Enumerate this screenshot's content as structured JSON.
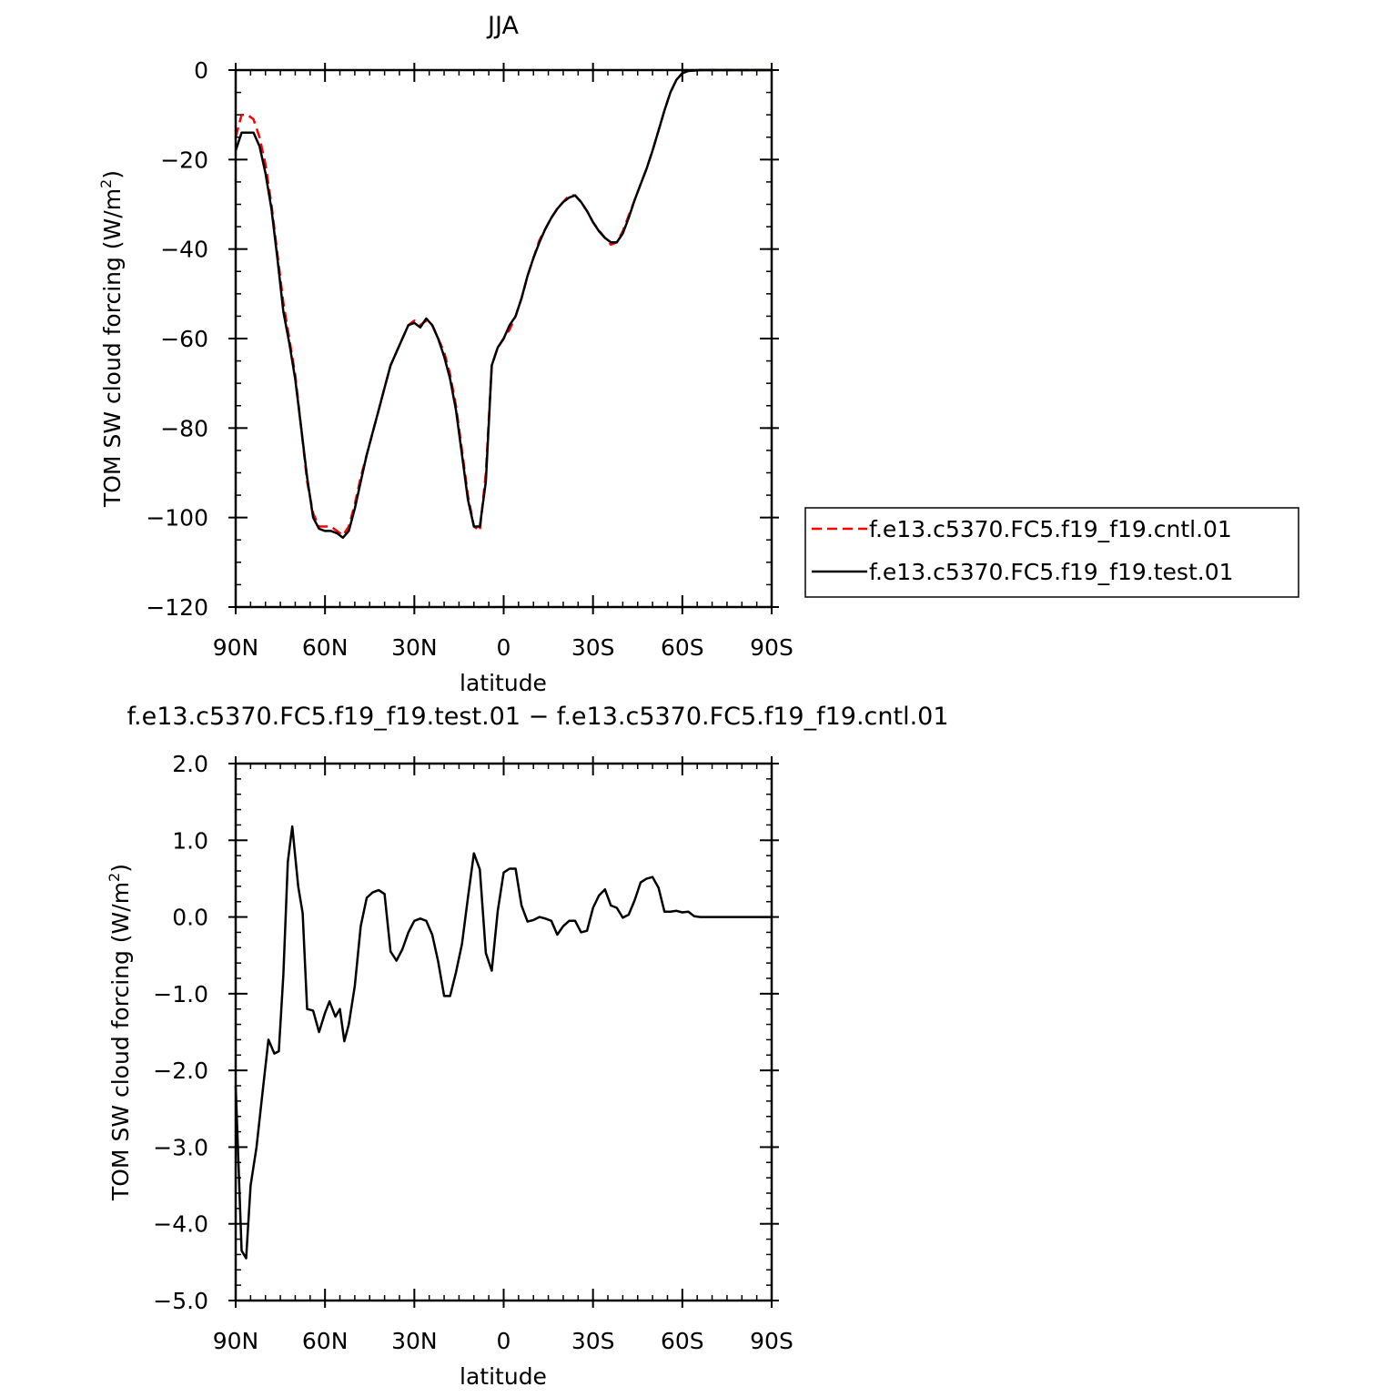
{
  "chart_data": [
    {
      "type": "line",
      "title": "JJA",
      "xlabel": "latitude",
      "ylabel_main": "TOM SW cloud forcing (W/m",
      "ylabel_sup": "2",
      "ylabel_tail": ")",
      "xlim": [
        90,
        -90
      ],
      "ylim": [
        -120,
        0
      ],
      "xticks": [
        90,
        60,
        30,
        0,
        -30,
        -60,
        -90
      ],
      "xtick_labels": [
        "90N",
        "60N",
        "30N",
        "0",
        "30S",
        "60S",
        "90S"
      ],
      "yticks": [
        0,
        -20,
        -40,
        -60,
        -80,
        -100,
        -120
      ],
      "ytick_labels": [
        "0",
        "−20",
        "−40",
        "−60",
        "−80",
        "−100",
        "−120"
      ],
      "legend_position": "right",
      "series": [
        {
          "name": "f.e13.c5370.FC5.f19_f19.cntl.01",
          "color": "#ff0000",
          "dash": "dashed",
          "x": [
            90,
            88,
            86,
            84,
            82,
            80,
            78,
            76,
            74,
            72,
            70,
            68,
            66,
            64,
            62,
            60,
            58,
            56,
            54,
            52,
            50,
            48,
            46,
            44,
            42,
            40,
            38,
            36,
            34,
            32,
            30,
            28,
            26,
            24,
            22,
            20,
            18,
            16,
            14,
            12,
            10,
            8,
            6,
            4,
            2,
            0,
            -2,
            -4,
            -6,
            -8,
            -10,
            -12,
            -14,
            -16,
            -18,
            -20,
            -22,
            -24,
            -26,
            -28,
            -30,
            -32,
            -34,
            -36,
            -38,
            -40,
            -42,
            -44,
            -46,
            -48,
            -50,
            -52,
            -54,
            -56,
            -58,
            -60,
            -62,
            -64,
            -66,
            -68,
            -70,
            -75,
            -80,
            -85,
            -90
          ],
          "y": [
            -15,
            -10,
            -10,
            -11,
            -15,
            -21,
            -30,
            -41,
            -52,
            -60,
            -68,
            -80,
            -92,
            -99,
            -102,
            -102,
            -102,
            -103,
            -104,
            -102,
            -97,
            -91,
            -86,
            -81,
            -76,
            -71,
            -66,
            -63,
            -60,
            -57,
            -56,
            -57,
            -56,
            -57,
            -60,
            -63,
            -68,
            -75,
            -85,
            -95,
            -102,
            -103,
            -90,
            -66,
            -62,
            -60,
            -58,
            -55,
            -51,
            -46,
            -42,
            -38,
            -35.5,
            -33,
            -31,
            -29.5,
            -28,
            -28,
            -29.5,
            -31.5,
            -34,
            -35.8,
            -37.5,
            -39,
            -38.5,
            -36,
            -32.5,
            -29,
            -25.5,
            -22,
            -18,
            -13.5,
            -9,
            -5,
            -2.2,
            -0.7,
            -0.2,
            -0.1,
            0,
            0,
            0,
            0,
            0,
            0,
            0
          ]
        },
        {
          "name": "f.e13.c5370.FC5.f19_f19.test.01",
          "color": "#000000",
          "dash": "solid",
          "x": [
            90,
            88,
            86,
            84,
            82,
            80,
            78,
            76,
            74,
            72,
            70,
            68,
            66,
            64,
            62,
            60,
            58,
            56,
            54,
            52,
            50,
            48,
            46,
            44,
            42,
            40,
            38,
            36,
            34,
            32,
            30,
            28,
            26,
            24,
            22,
            20,
            18,
            16,
            14,
            12,
            10,
            8,
            6,
            4,
            2,
            0,
            -2,
            -4,
            -6,
            -8,
            -10,
            -12,
            -14,
            -16,
            -18,
            -20,
            -22,
            -24,
            -26,
            -28,
            -30,
            -32,
            -34,
            -36,
            -38,
            -40,
            -42,
            -44,
            -46,
            -48,
            -50,
            -52,
            -54,
            -56,
            -58,
            -60,
            -62,
            -64,
            -66,
            -68,
            -70,
            -75,
            -80,
            -85,
            -90
          ],
          "y": [
            -18,
            -14,
            -14,
            -14,
            -17,
            -23,
            -31,
            -42,
            -54,
            -61,
            -69,
            -80,
            -91,
            -100,
            -102.5,
            -103,
            -103,
            -103.5,
            -104.5,
            -103,
            -98,
            -92,
            -86,
            -81,
            -76,
            -71,
            -66,
            -63,
            -60,
            -57,
            -56.5,
            -57.5,
            -55.5,
            -57,
            -60,
            -64,
            -69,
            -76,
            -86,
            -96,
            -102,
            -102,
            -92,
            -66,
            -62,
            -60,
            -57,
            -55,
            -51,
            -46,
            -42,
            -38.5,
            -35.5,
            -33,
            -31,
            -29.5,
            -28.5,
            -28,
            -29.5,
            -31.5,
            -34,
            -36,
            -37.5,
            -38.5,
            -38.5,
            -36.5,
            -33,
            -29,
            -25.5,
            -22,
            -18,
            -13.5,
            -9,
            -5,
            -2.2,
            -0.7,
            -0.2,
            -0.1,
            0,
            0,
            0,
            0,
            0,
            0,
            0
          ]
        }
      ]
    },
    {
      "type": "line",
      "title": "f.e13.c5370.FC5.f19_f19.test.01 − f.e13.c5370.FC5.f19_f19.cntl.01",
      "xlabel": "latitude",
      "ylabel_main": "TOM SW cloud forcing (W/m",
      "ylabel_sup": "2",
      "ylabel_tail": ")",
      "xlim": [
        90,
        -90
      ],
      "ylim": [
        -5,
        2
      ],
      "xticks": [
        90,
        60,
        30,
        0,
        -30,
        -60,
        -90
      ],
      "xtick_labels": [
        "90N",
        "60N",
        "30N",
        "0",
        "30S",
        "60S",
        "90S"
      ],
      "yticks": [
        2,
        1,
        0,
        -1,
        -2,
        -3,
        -4,
        -5
      ],
      "ytick_labels": [
        "2.0",
        "1.0",
        "0.0",
        "−1.0",
        "−2.0",
        "−3.0",
        "−4.0",
        "−5.0"
      ],
      "series": [
        {
          "color": "#000000",
          "dash": "solid",
          "x": [
            90,
            88,
            86.5,
            85,
            83,
            81,
            79,
            77,
            75.5,
            74,
            72.5,
            71,
            69,
            67.5,
            66,
            64,
            62,
            60,
            58.5,
            56.5,
            55,
            53.5,
            52,
            50,
            48,
            46,
            44,
            42,
            40,
            38,
            36,
            34,
            32,
            30,
            28,
            26,
            24,
            22,
            20,
            18,
            16,
            14,
            12,
            10,
            8,
            6,
            4,
            2,
            0,
            -2,
            -4,
            -6,
            -8,
            -10,
            -12,
            -14,
            -16,
            -18,
            -20,
            -22,
            -24,
            -26,
            -28,
            -30,
            -32,
            -34,
            -36,
            -38,
            -40,
            -42,
            -44,
            -46,
            -48,
            -50,
            -52,
            -54,
            -56,
            -58,
            -60,
            -62,
            -64,
            -66,
            -68,
            -70,
            -75,
            -80,
            -85,
            -90
          ],
          "y": [
            -2.2,
            -4.35,
            -4.45,
            -3.5,
            -3.0,
            -2.3,
            -1.6,
            -1.78,
            -1.75,
            -0.75,
            0.72,
            1.18,
            0.4,
            0.05,
            -1.2,
            -1.22,
            -1.5,
            -1.25,
            -1.1,
            -1.3,
            -1.2,
            -1.62,
            -1.4,
            -0.9,
            -0.12,
            0.25,
            0.32,
            0.35,
            0.3,
            -0.45,
            -0.57,
            -0.42,
            -0.2,
            -0.05,
            -0.02,
            -0.05,
            -0.23,
            -0.58,
            -1.03,
            -1.03,
            -0.72,
            -0.35,
            0.25,
            0.83,
            0.62,
            -0.47,
            -0.7,
            0.08,
            0.58,
            0.63,
            0.63,
            0.15,
            -0.06,
            -0.04,
            0.0,
            -0.02,
            -0.05,
            -0.23,
            -0.12,
            -0.05,
            -0.05,
            -0.2,
            -0.18,
            0.12,
            0.28,
            0.36,
            0.15,
            0.12,
            -0.01,
            0.03,
            0.22,
            0.45,
            0.5,
            0.52,
            0.38,
            0.07,
            0.07,
            0.08,
            0.06,
            0.07,
            0.01,
            0.0,
            0.0,
            0.0,
            0.0,
            0.0,
            0.0,
            0.0
          ]
        }
      ]
    }
  ]
}
